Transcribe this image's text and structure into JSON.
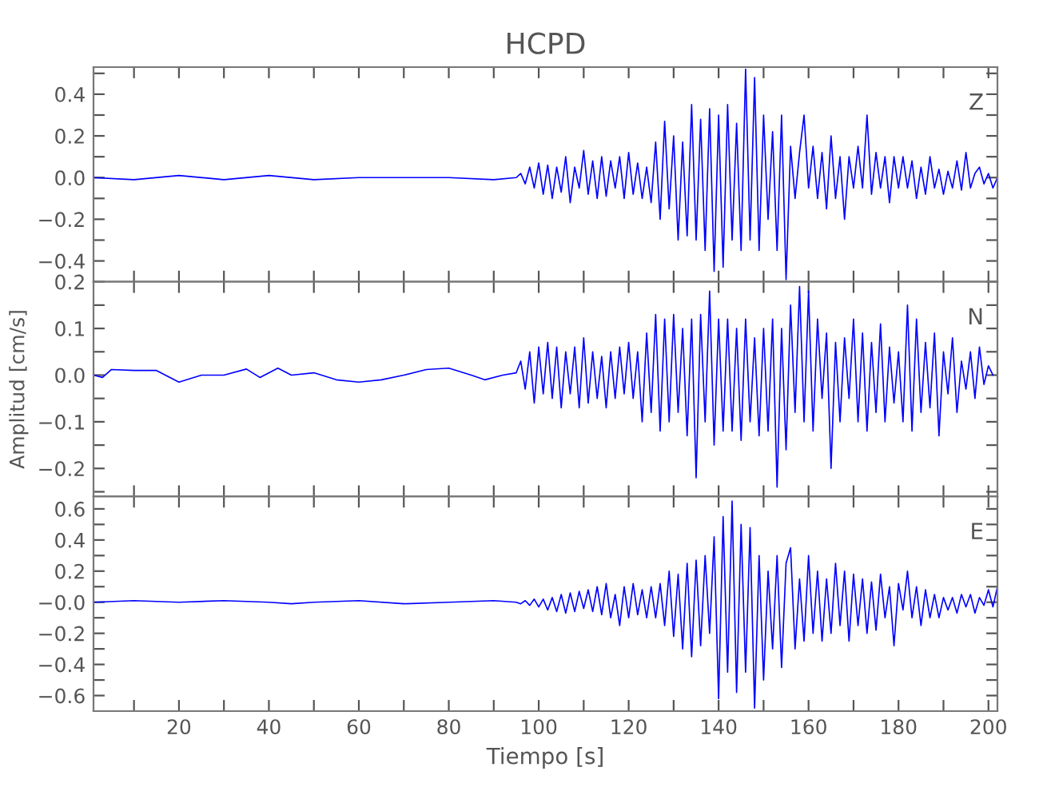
{
  "chart_data": [
    {
      "type": "line",
      "title": "HCPD",
      "annotations": [
        "Z"
      ],
      "tick_labels": "y",
      "grid": false,
      "legend": false,
      "marker": "none",
      "line_style": "solid",
      "xlim": [
        1,
        202
      ],
      "xticks": [
        {
          "value": 10,
          "label": null
        },
        {
          "value": 20,
          "label": null
        },
        {
          "value": 30,
          "label": null
        },
        {
          "value": 40,
          "label": null
        },
        {
          "value": 50,
          "label": null
        },
        {
          "value": 60,
          "label": null
        },
        {
          "value": 70,
          "label": null
        },
        {
          "value": 80,
          "label": null
        },
        {
          "value": 90,
          "label": null
        },
        {
          "value": 100,
          "label": null
        },
        {
          "value": 110,
          "label": null
        },
        {
          "value": 120,
          "label": null
        },
        {
          "value": 130,
          "label": null
        },
        {
          "value": 140,
          "label": null
        },
        {
          "value": 150,
          "label": null
        },
        {
          "value": 160,
          "label": null
        },
        {
          "value": 170,
          "label": null
        },
        {
          "value": 180,
          "label": null
        },
        {
          "value": 190,
          "label": null
        },
        {
          "value": 200,
          "label": null
        }
      ],
      "ylim": [
        -0.5,
        0.53
      ],
      "yticks": [
        {
          "value": -0.4,
          "label": "−0.4"
        },
        {
          "value": -0.3,
          "label": null
        },
        {
          "value": -0.2,
          "label": "−0.2"
        },
        {
          "value": -0.1,
          "label": null
        },
        {
          "value": 0.0,
          "label": "0.0"
        },
        {
          "value": 0.1,
          "label": null
        },
        {
          "value": 0.2,
          "label": "0.2"
        },
        {
          "value": 0.3,
          "label": null
        },
        {
          "value": 0.4,
          "label": "0.4"
        },
        {
          "value": 0.5,
          "label": null
        }
      ],
      "series": [
        {
          "color": "#0000ff",
          "x": [
            1,
            10,
            20,
            30,
            40,
            50,
            60,
            70,
            80,
            90,
            95,
            96,
            97,
            98,
            99,
            100,
            101,
            102,
            103,
            104,
            105,
            106,
            107,
            108,
            109,
            110,
            111,
            112,
            113,
            114,
            115,
            116,
            117,
            118,
            119,
            120,
            121,
            122,
            123,
            124,
            125,
            126,
            127,
            128,
            129,
            130,
            131,
            132,
            133,
            134,
            135,
            136,
            137,
            138,
            139,
            140,
            141,
            142,
            143,
            144,
            145,
            146,
            147,
            148,
            149,
            150,
            151,
            152,
            153,
            154,
            155,
            156,
            157,
            158,
            159,
            160,
            161,
            162,
            163,
            164,
            165,
            166,
            167,
            168,
            169,
            170,
            171,
            172,
            173,
            174,
            175,
            176,
            177,
            178,
            179,
            180,
            181,
            182,
            183,
            184,
            185,
            186,
            187,
            188,
            189,
            190,
            191,
            192,
            193,
            194,
            195,
            196,
            197,
            198,
            199,
            200,
            201,
            202
          ],
          "values": [
            0,
            -0.01,
            0.01,
            -0.01,
            0.01,
            -0.01,
            0,
            0,
            0,
            -0.01,
            0,
            0.02,
            -0.03,
            0.05,
            -0.05,
            0.07,
            -0.08,
            0.06,
            -0.1,
            0.05,
            -0.07,
            0.1,
            -0.12,
            0.05,
            -0.05,
            0.13,
            -0.08,
            0.08,
            -0.1,
            0.1,
            -0.09,
            0.08,
            -0.05,
            0.1,
            -0.1,
            0.12,
            -0.08,
            0.07,
            -0.1,
            0.05,
            -0.12,
            0.17,
            -0.2,
            0.27,
            -0.15,
            0.2,
            -0.3,
            0.17,
            -0.28,
            0.35,
            -0.3,
            0.28,
            -0.35,
            0.33,
            -0.45,
            0.3,
            -0.43,
            0.35,
            -0.3,
            0.26,
            -0.35,
            0.52,
            -0.3,
            0.48,
            -0.35,
            0.3,
            -0.2,
            0.22,
            -0.35,
            0.3,
            -0.49,
            0.15,
            -0.1,
            0.12,
            0.3,
            -0.05,
            0.15,
            -0.1,
            0.12,
            -0.15,
            0.2,
            -0.1,
            0.1,
            -0.2,
            0.1,
            -0.05,
            0.15,
            -0.05,
            0.3,
            -0.08,
            0.12,
            -0.05,
            0.1,
            -0.12,
            0.1,
            -0.05,
            0.1,
            -0.05,
            0.08,
            -0.1,
            0.05,
            -0.08,
            0.1,
            -0.05,
            0.04,
            -0.08,
            0.03,
            -0.05,
            0.08,
            -0.06,
            0.12,
            -0.05,
            0.02,
            0.05,
            -0.03,
            0.02,
            -0.05,
            0
          ]
        }
      ]
    },
    {
      "type": "line",
      "ylabel": "Amplitud [cm/s]",
      "annotations": [
        "N"
      ],
      "tick_labels": "y",
      "grid": false,
      "legend": false,
      "marker": "none",
      "line_style": "solid",
      "xlim": [
        1,
        202
      ],
      "xticks": [
        {
          "value": 10,
          "label": null
        },
        {
          "value": 20,
          "label": null
        },
        {
          "value": 30,
          "label": null
        },
        {
          "value": 40,
          "label": null
        },
        {
          "value": 50,
          "label": null
        },
        {
          "value": 60,
          "label": null
        },
        {
          "value": 70,
          "label": null
        },
        {
          "value": 80,
          "label": null
        },
        {
          "value": 90,
          "label": null
        },
        {
          "value": 100,
          "label": null
        },
        {
          "value": 110,
          "label": null
        },
        {
          "value": 120,
          "label": null
        },
        {
          "value": 130,
          "label": null
        },
        {
          "value": 140,
          "label": null
        },
        {
          "value": 150,
          "label": null
        },
        {
          "value": 160,
          "label": null
        },
        {
          "value": 170,
          "label": null
        },
        {
          "value": 180,
          "label": null
        },
        {
          "value": 190,
          "label": null
        },
        {
          "value": 200,
          "label": null
        }
      ],
      "ylim": [
        -0.26,
        0.2
      ],
      "yticks": [
        {
          "value": -0.25,
          "label": null
        },
        {
          "value": -0.2,
          "label": "−0.2"
        },
        {
          "value": -0.15,
          "label": null
        },
        {
          "value": -0.1,
          "label": "−0.1"
        },
        {
          "value": -0.05,
          "label": null
        },
        {
          "value": 0.0,
          "label": "0.0"
        },
        {
          "value": 0.05,
          "label": null
        },
        {
          "value": 0.1,
          "label": "0.1"
        },
        {
          "value": 0.15,
          "label": null
        },
        {
          "value": 0.2,
          "label": "0.2"
        }
      ],
      "series": [
        {
          "color": "#0000ff",
          "x": [
            1,
            3,
            5,
            10,
            15,
            20,
            25,
            30,
            35,
            38,
            42,
            45,
            50,
            55,
            60,
            65,
            70,
            75,
            80,
            85,
            88,
            92,
            95,
            96,
            97,
            98,
            99,
            100,
            101,
            102,
            103,
            104,
            105,
            106,
            107,
            108,
            109,
            110,
            111,
            112,
            113,
            114,
            115,
            116,
            117,
            118,
            119,
            120,
            121,
            122,
            123,
            124,
            125,
            126,
            127,
            128,
            129,
            130,
            131,
            132,
            133,
            134,
            135,
            136,
            137,
            138,
            139,
            140,
            141,
            142,
            143,
            144,
            145,
            146,
            147,
            148,
            149,
            150,
            151,
            152,
            153,
            154,
            155,
            156,
            157,
            158,
            159,
            160,
            161,
            162,
            163,
            164,
            165,
            166,
            167,
            168,
            169,
            170,
            171,
            172,
            173,
            174,
            175,
            176,
            177,
            178,
            179,
            180,
            181,
            182,
            183,
            184,
            185,
            186,
            187,
            188,
            189,
            190,
            191,
            192,
            193,
            194,
            195,
            196,
            197,
            198,
            199,
            200,
            201
          ],
          "values": [
            0,
            -0.005,
            0.012,
            0.01,
            0.01,
            -0.015,
            0,
            0,
            0.013,
            -0.005,
            0.015,
            0,
            0.005,
            -0.01,
            -0.015,
            -0.01,
            0,
            0.012,
            0.015,
            0,
            -0.01,
            0,
            0.005,
            0.03,
            -0.03,
            0.05,
            -0.06,
            0.06,
            -0.04,
            0.07,
            -0.05,
            0.06,
            -0.07,
            0.05,
            -0.04,
            0.06,
            -0.07,
            0.08,
            -0.06,
            0.05,
            -0.05,
            0.04,
            -0.07,
            0.05,
            -0.05,
            0.06,
            -0.04,
            0.07,
            -0.05,
            0.05,
            -0.1,
            0.09,
            -0.08,
            0.13,
            -0.12,
            0.12,
            -0.1,
            0.13,
            -0.08,
            0.1,
            -0.13,
            0.12,
            -0.22,
            0.13,
            -0.1,
            0.18,
            -0.15,
            0.12,
            -0.12,
            0.12,
            -0.12,
            0.1,
            -0.14,
            0.12,
            -0.1,
            0.08,
            -0.13,
            0.1,
            -0.12,
            0.12,
            -0.24,
            0.1,
            -0.16,
            0.15,
            -0.08,
            0.19,
            -0.1,
            0.18,
            -0.12,
            0.12,
            -0.05,
            0.09,
            -0.2,
            0.07,
            -0.1,
            0.08,
            -0.05,
            0.12,
            -0.1,
            0.09,
            -0.12,
            0.07,
            -0.08,
            0.11,
            -0.1,
            0.06,
            -0.06,
            0.05,
            -0.1,
            0.15,
            -0.12,
            0.12,
            -0.08,
            0.07,
            -0.07,
            0.09,
            -0.13,
            0.05,
            -0.04,
            0.08,
            -0.08,
            0.03,
            -0.03,
            0.05,
            -0.05,
            0.06,
            -0.02,
            0.02,
            0
          ]
        }
      ]
    },
    {
      "type": "line",
      "xlabel": "Tiempo [s]",
      "annotations": [
        "E"
      ],
      "grid": false,
      "legend": false,
      "marker": "none",
      "line_style": "solid",
      "xlim": [
        1,
        202
      ],
      "xticks": [
        {
          "value": 10,
          "label": null
        },
        20,
        {
          "value": 30,
          "label": null
        },
        40,
        {
          "value": 50,
          "label": null
        },
        60,
        {
          "value": 70,
          "label": null
        },
        80,
        {
          "value": 90,
          "label": null
        },
        100,
        {
          "value": 110,
          "label": null
        },
        120,
        {
          "value": 130,
          "label": null
        },
        140,
        {
          "value": 150,
          "label": null
        },
        160,
        {
          "value": 170,
          "label": null
        },
        180,
        {
          "value": 190,
          "label": null
        },
        200
      ],
      "ylim": [
        -0.7,
        0.68
      ],
      "yticks": [
        {
          "value": -0.6,
          "label": "−0.6"
        },
        {
          "value": -0.5,
          "label": null
        },
        {
          "value": -0.4,
          "label": "−0.4"
        },
        {
          "value": -0.3,
          "label": null
        },
        {
          "value": -0.2,
          "label": "−0.2"
        },
        {
          "value": -0.1,
          "label": null
        },
        {
          "value": 0.0,
          "label": "−0.0"
        },
        {
          "value": 0.1,
          "label": null
        },
        {
          "value": 0.2,
          "label": "0.2"
        },
        {
          "value": 0.3,
          "label": null
        },
        {
          "value": 0.4,
          "label": "0.4"
        },
        {
          "value": 0.5,
          "label": null
        },
        {
          "value": 0.6,
          "label": "0.6"
        }
      ],
      "series": [
        {
          "color": "#0000ff",
          "x": [
            1,
            10,
            20,
            30,
            40,
            45,
            50,
            60,
            70,
            80,
            90,
            95,
            96,
            97,
            98,
            99,
            100,
            101,
            102,
            103,
            104,
            105,
            106,
            107,
            108,
            109,
            110,
            111,
            112,
            113,
            114,
            115,
            116,
            117,
            118,
            119,
            120,
            121,
            122,
            123,
            124,
            125,
            126,
            127,
            128,
            129,
            130,
            131,
            132,
            133,
            134,
            135,
            136,
            137,
            138,
            139,
            140,
            141,
            142,
            143,
            144,
            145,
            146,
            147,
            148,
            149,
            150,
            151,
            152,
            153,
            154,
            155,
            156,
            157,
            158,
            159,
            160,
            161,
            162,
            163,
            164,
            165,
            166,
            167,
            168,
            169,
            170,
            171,
            172,
            173,
            174,
            175,
            176,
            177,
            178,
            179,
            180,
            181,
            182,
            183,
            184,
            185,
            186,
            187,
            188,
            189,
            190,
            191,
            192,
            193,
            194,
            195,
            196,
            197,
            198,
            199,
            200,
            201,
            202
          ],
          "values": [
            0,
            0.01,
            0,
            0.01,
            0,
            -0.01,
            0,
            0.01,
            -0.01,
            0,
            0.01,
            0,
            -0.01,
            0.01,
            -0.02,
            0.02,
            -0.03,
            0.02,
            -0.05,
            0.03,
            -0.06,
            0.05,
            -0.07,
            0.06,
            -0.06,
            0.07,
            -0.04,
            0.08,
            -0.06,
            0.1,
            -0.08,
            0.12,
            -0.1,
            0.05,
            -0.15,
            0.1,
            -0.1,
            0.12,
            -0.08,
            0.08,
            -0.1,
            0.1,
            -0.1,
            0.12,
            -0.15,
            0.2,
            -0.22,
            0.18,
            -0.3,
            0.25,
            -0.35,
            0.27,
            -0.28,
            0.3,
            -0.2,
            0.42,
            -0.62,
            0.55,
            -0.45,
            0.65,
            -0.58,
            0.5,
            -0.45,
            0.48,
            -0.68,
            0.3,
            -0.5,
            0.2,
            -0.3,
            0.3,
            -0.42,
            0.25,
            0.35,
            -0.3,
            0.15,
            -0.25,
            0.3,
            -0.2,
            0.2,
            -0.25,
            0.15,
            -0.2,
            0.25,
            -0.15,
            0.2,
            -0.25,
            0.18,
            -0.15,
            0.15,
            -0.2,
            0.13,
            -0.18,
            0.18,
            -0.1,
            0.1,
            -0.28,
            0.12,
            -0.05,
            0.2,
            -0.1,
            0.1,
            -0.15,
            0.08,
            -0.1,
            0.05,
            -0.1,
            0.03,
            -0.05,
            0.03,
            -0.07,
            0.05,
            -0.03,
            0.05,
            -0.07,
            0.03,
            -0.02,
            0.08,
            -0.03,
            0.1
          ]
        }
      ]
    }
  ]
}
